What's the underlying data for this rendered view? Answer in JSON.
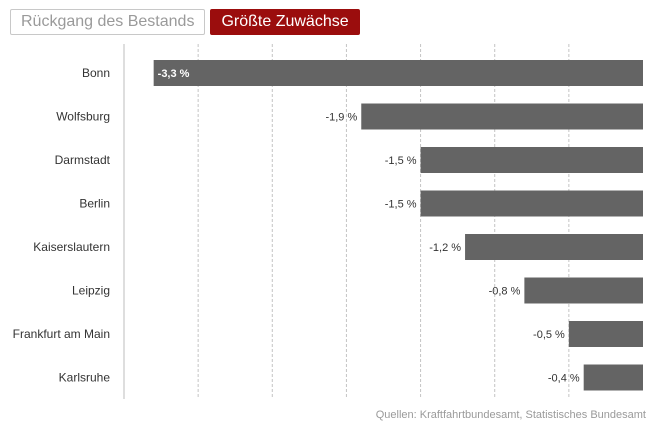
{
  "tabs": [
    {
      "label": "Rückgang des Bestands",
      "active": false
    },
    {
      "label": "Größte Zuwächse",
      "active": true
    }
  ],
  "chart_data": {
    "type": "bar",
    "orientation": "horizontal",
    "categories": [
      "Bonn",
      "Wolfsburg",
      "Darmstadt",
      "Berlin",
      "Kaiserslautern",
      "Leipzig",
      "Frankfurt am Main",
      "Karlsruhe"
    ],
    "values": [
      -3.3,
      -1.9,
      -1.5,
      -1.5,
      -1.2,
      -0.8,
      -0.5,
      -0.4
    ],
    "value_labels": [
      "-3,3 %",
      "-1,9 %",
      "-1,5 %",
      "-1,5 %",
      "-1,2 %",
      "-0,8 %",
      "-0,5 %",
      "-0,4 %"
    ],
    "xlim": [
      -3.5,
      0
    ],
    "grid": true,
    "bar_color": "#646464",
    "source": "Quellen: Kraftfahrtbundesamt, Statistisches Bundesamt"
  }
}
